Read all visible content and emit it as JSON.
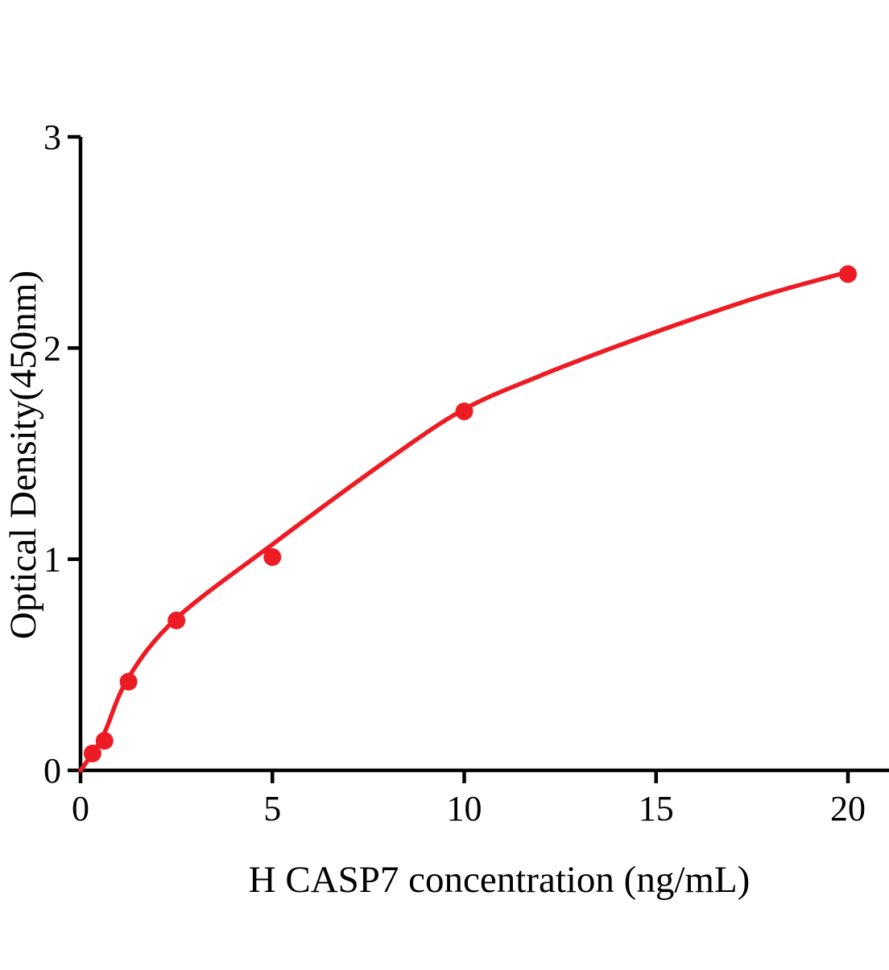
{
  "page": {
    "background_color": "#ffffff",
    "text_color": "#000000"
  },
  "chart_data": {
    "type": "scatter",
    "title": "",
    "xlabel": "H CASP7 concentration (ng/mL)",
    "ylabel": "Optical Density(450nm)",
    "xlim": [
      0,
      20
    ],
    "ylim": [
      0,
      3
    ],
    "xticks": [
      0,
      5,
      10,
      15,
      20
    ],
    "yticks": [
      0,
      1,
      2,
      3
    ],
    "grid": false,
    "legend_position": "none",
    "axis_color": "#000000",
    "point_color": "#ed1c24",
    "curve_color": "#ed1c24",
    "points": [
      {
        "x": 0.313,
        "y": 0.08
      },
      {
        "x": 0.625,
        "y": 0.14
      },
      {
        "x": 1.25,
        "y": 0.42
      },
      {
        "x": 2.5,
        "y": 0.71
      },
      {
        "x": 5,
        "y": 1.01
      },
      {
        "x": 10,
        "y": 1.7
      },
      {
        "x": 20,
        "y": 2.35
      }
    ],
    "fit_curve": [
      [
        0,
        0
      ],
      [
        0.31,
        0.08
      ],
      [
        0.63,
        0.18
      ],
      [
        1.25,
        0.44
      ],
      [
        2.5,
        0.72
      ],
      [
        5,
        1.07
      ],
      [
        8,
        1.47
      ],
      [
        10,
        1.71
      ],
      [
        12,
        1.87
      ],
      [
        14,
        2.01
      ],
      [
        16,
        2.14
      ],
      [
        18,
        2.26
      ],
      [
        20,
        2.36
      ]
    ]
  }
}
